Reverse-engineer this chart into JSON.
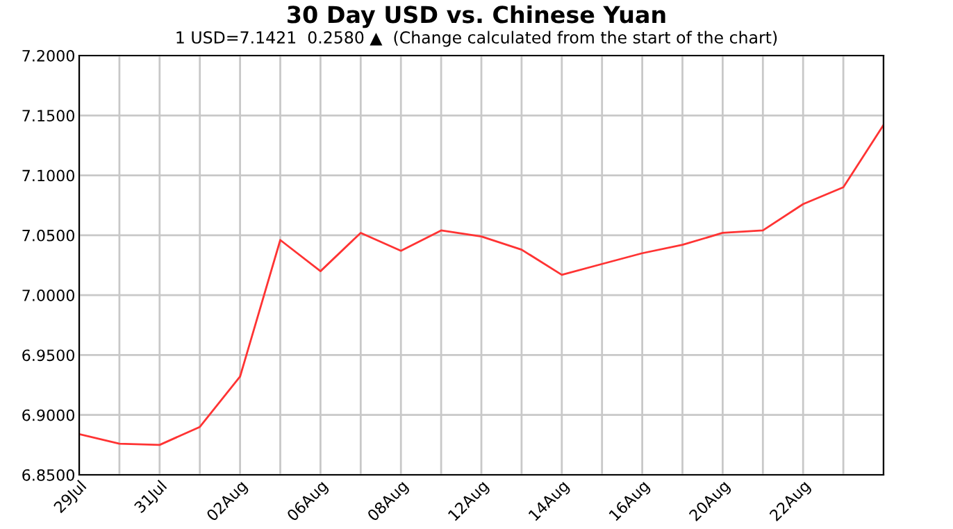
{
  "chart_data": {
    "type": "line",
    "title": "30 Day USD vs. Chinese Yuan",
    "subtitle": "1 USD=7.1421  0.2580 ▲  (Change calculated from the start of the chart)",
    "categories": [
      "29Jul",
      null,
      "31Jul",
      null,
      "02Aug",
      null,
      "06Aug",
      null,
      "08Aug",
      null,
      "12Aug",
      null,
      "14Aug",
      null,
      "16Aug",
      null,
      "20Aug",
      null,
      "22Aug",
      null,
      null
    ],
    "series": [
      {
        "color": "#ff3333",
        "values": [
          6.884,
          6.876,
          6.875,
          6.89,
          6.932,
          7.046,
          7.02,
          7.052,
          7.037,
          7.054,
          7.049,
          7.038,
          7.017,
          7.026,
          7.035,
          7.042,
          7.052,
          7.054,
          7.076,
          7.09,
          7.1421
        ]
      }
    ],
    "ylim": [
      6.85,
      7.2
    ],
    "yticks": [
      {
        "value": 6.85,
        "label": "6.8500"
      },
      {
        "value": 6.9,
        "label": "6.9000"
      },
      {
        "value": 6.95,
        "label": "6.9500"
      },
      {
        "value": 7.0,
        "label": "7.0000"
      },
      {
        "value": 7.05,
        "label": "7.0500"
      },
      {
        "value": 7.1,
        "label": "7.1000"
      },
      {
        "value": 7.15,
        "label": "7.1500"
      },
      {
        "value": 7.2,
        "label": "7.2000"
      }
    ],
    "grid": true,
    "marker": "none",
    "line_style": "solid"
  }
}
